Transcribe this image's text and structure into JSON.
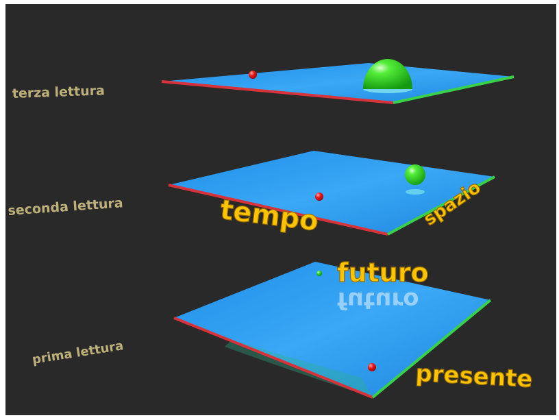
{
  "labels": {
    "terza": "terza lettura",
    "seconda": "seconda lettura",
    "prima": "prima lettura"
  },
  "words": {
    "tempo": "tempo",
    "spazio": "spazio",
    "futuro": "futuro",
    "presente": "presente"
  },
  "colors": {
    "background": "#292929",
    "plane": "#2f9ff0",
    "time_edge": "#d8323a",
    "space_edge": "#39d14a",
    "text_gold": "#ffc400",
    "label_khaki": "#bdb07a"
  }
}
